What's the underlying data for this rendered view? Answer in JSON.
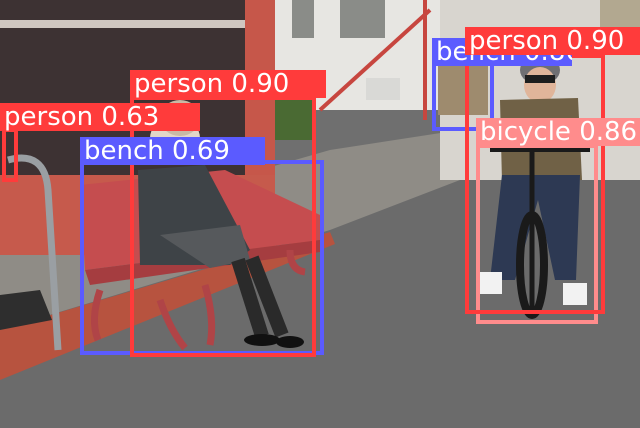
{
  "colors": {
    "person": "#ff3b3b",
    "bench": "#5b5bff",
    "bicycle": "#ff8c8c",
    "label_text": "#ffffff"
  },
  "detections": [
    {
      "name": "det-bench-right",
      "label": "bench 0.86",
      "cls": "bench"
    },
    {
      "name": "det-person-left",
      "label": "person 0.63",
      "cls": "person"
    },
    {
      "name": "det-bench-left",
      "label": "bench 0.69",
      "cls": "bench"
    },
    {
      "name": "det-person-center",
      "label": "person 0.90",
      "cls": "person"
    },
    {
      "name": "det-bicycle",
      "label": "bicycle 0.86",
      "cls": "bicycle"
    },
    {
      "name": "det-person-right",
      "label": "person 0.90",
      "cls": "person"
    }
  ]
}
